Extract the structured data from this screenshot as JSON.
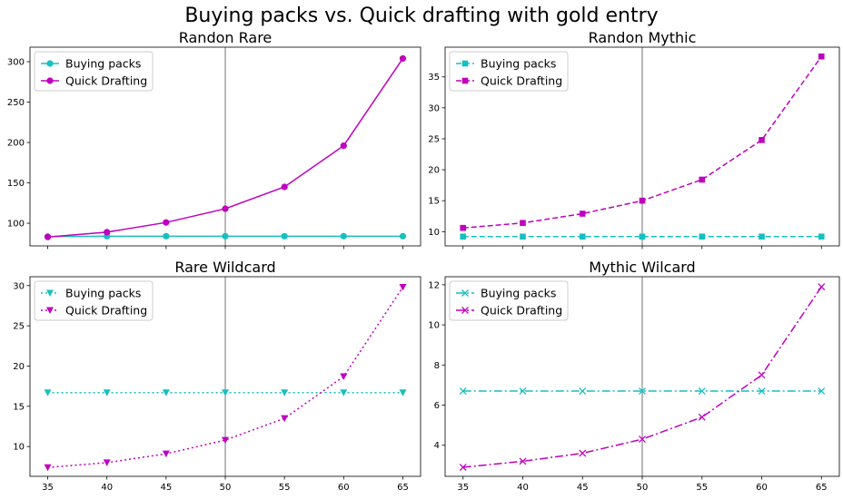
{
  "figure": {
    "title": "Buying packs vs. Quick drafting with gold entry"
  },
  "chart_data": [
    {
      "type": "line",
      "title": "Randon Rare",
      "x": [
        35,
        40,
        45,
        50,
        55,
        60,
        65
      ],
      "xlim": [
        33.5,
        66.5
      ],
      "ylim": [
        72,
        318
      ],
      "yticks": [
        100,
        150,
        200,
        250,
        300
      ],
      "marker": "circle",
      "linestyle": "solid",
      "vline": 50,
      "legend": "upper-left",
      "series": [
        {
          "name": "Buying packs",
          "color": "#17BFBF",
          "values": [
            83.5,
            84,
            84,
            84,
            84,
            84,
            84
          ]
        },
        {
          "name": "Quick Drafting",
          "color": "#BF00BF",
          "values": [
            83,
            89,
            101,
            118,
            145,
            196,
            304
          ]
        }
      ]
    },
    {
      "type": "line",
      "title": "Randon Mythic",
      "x": [
        35,
        40,
        45,
        50,
        55,
        60,
        65
      ],
      "xlim": [
        33.5,
        66.5
      ],
      "ylim": [
        7.7,
        39.8
      ],
      "yticks": [
        10,
        15,
        20,
        25,
        30,
        35
      ],
      "marker": "square",
      "linestyle": "dashed",
      "vline": 50,
      "legend": "upper-left",
      "series": [
        {
          "name": "Buying packs",
          "color": "#17BFBF",
          "values": [
            9.2,
            9.2,
            9.2,
            9.2,
            9.2,
            9.2,
            9.2
          ]
        },
        {
          "name": "Quick Drafting",
          "color": "#BF00BF",
          "values": [
            10.6,
            11.4,
            12.9,
            15.0,
            18.4,
            24.8,
            38.3
          ]
        }
      ]
    },
    {
      "type": "line",
      "title": "Rare Wildcard",
      "x": [
        35,
        40,
        45,
        50,
        55,
        60,
        65
      ],
      "xlim": [
        33.5,
        66.5
      ],
      "ylim": [
        6.3,
        31.1
      ],
      "yticks": [
        10,
        15,
        20,
        25,
        30
      ],
      "marker": "triangle-down",
      "linestyle": "dotted",
      "vline": 50,
      "legend": "upper-left",
      "series": [
        {
          "name": "Buying packs",
          "color": "#17BFBF",
          "values": [
            16.7,
            16.7,
            16.7,
            16.7,
            16.7,
            16.7,
            16.7
          ]
        },
        {
          "name": "Quick Drafting",
          "color": "#BF00BF",
          "values": [
            7.4,
            8.0,
            9.1,
            10.8,
            13.5,
            18.7,
            29.8
          ]
        }
      ]
    },
    {
      "type": "line",
      "title": "Mythic Wilcard",
      "x": [
        35,
        40,
        45,
        50,
        55,
        60,
        65
      ],
      "xlim": [
        33.5,
        66.5
      ],
      "ylim": [
        2.45,
        12.4
      ],
      "yticks": [
        4,
        6,
        8,
        10,
        12
      ],
      "marker": "x",
      "linestyle": "dashdot",
      "vline": 50,
      "legend": "upper-left",
      "series": [
        {
          "name": "Buying packs",
          "color": "#17BFBF",
          "values": [
            6.7,
            6.7,
            6.7,
            6.7,
            6.7,
            6.7,
            6.7
          ]
        },
        {
          "name": "Quick Drafting",
          "color": "#BF00BF",
          "values": [
            2.9,
            3.2,
            3.6,
            4.3,
            5.4,
            7.5,
            11.9
          ]
        }
      ]
    }
  ]
}
